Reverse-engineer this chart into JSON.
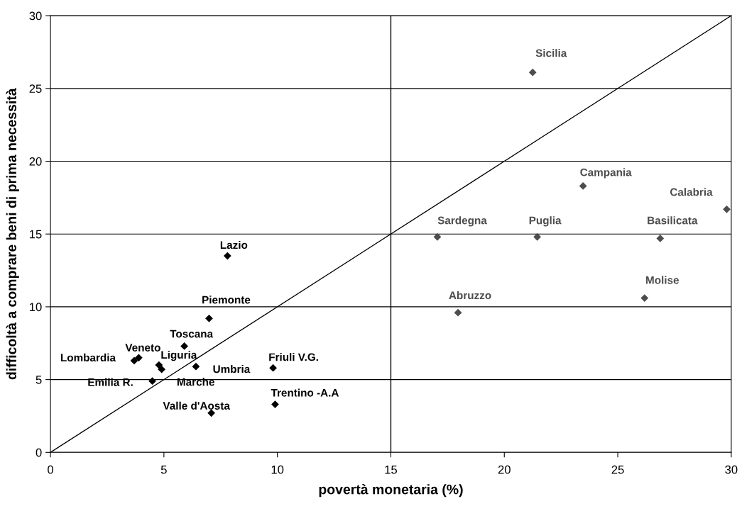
{
  "chart_data": {
    "type": "scatter",
    "xlabel": "povertà monetaria (%)",
    "ylabel": "difficoltà a comprare beni di prima necessità",
    "xlim": [
      0,
      30
    ],
    "ylim": [
      0,
      30
    ],
    "xticks": [
      0,
      5,
      10,
      15,
      20,
      25,
      30
    ],
    "yticks": [
      0,
      5,
      10,
      15,
      20,
      25,
      30
    ],
    "grid": "y",
    "marker": "diamond",
    "series": [
      {
        "color": "#000000",
        "x": [
          7.8,
          6.99,
          5.9,
          3.89,
          3.69,
          4.78,
          4.9,
          6.41,
          4.49,
          9.81,
          9.9,
          7.09
        ],
        "values": [
          13.5,
          9.2,
          7.3,
          6.5,
          6.3,
          6.0,
          5.7,
          5.9,
          4.9,
          5.8,
          3.3,
          2.7
        ],
        "value_labels": [
          "Lazio",
          "Piemonte",
          "Toscana",
          "Veneto",
          "Lombardia",
          "Liguria",
          "Marche",
          "Umbria",
          "Emilia R.",
          "Friuli V.G.",
          "Trentino -A.A",
          "Valle d'Aosta"
        ]
      },
      {
        "color": "#4d4d4d",
        "x": [
          21.25,
          23.47,
          29.8,
          17.05,
          21.45,
          26.87,
          26.18,
          17.96
        ],
        "values": [
          26.1,
          18.3,
          16.7,
          14.8,
          14.8,
          14.7,
          10.6,
          9.6
        ],
        "value_labels": [
          "Sicilia",
          "Campania",
          "Calabria",
          "Sardegna",
          "Puglia",
          "Basilicata",
          "Molise",
          "Abruzzo"
        ]
      },
      {
        "type": "line",
        "color": "#000000",
        "marker": "none",
        "x": [
          0,
          30
        ],
        "values": [
          0,
          30
        ]
      }
    ],
    "ref_lines": [
      {
        "axis": "x",
        "value": 15,
        "color": "#000000"
      }
    ]
  }
}
